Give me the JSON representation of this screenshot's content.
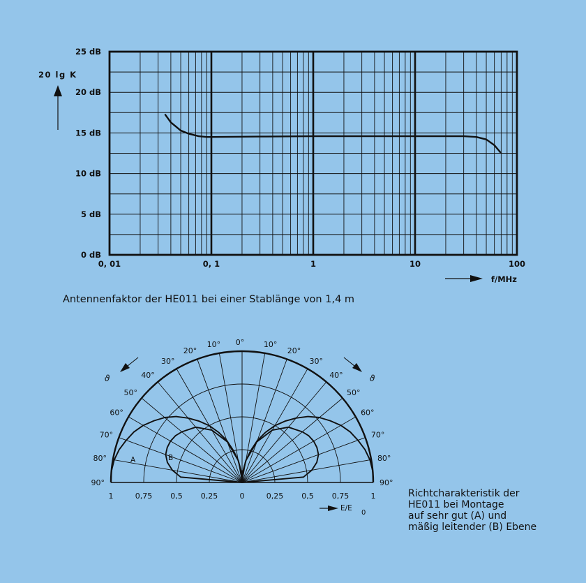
{
  "colors": {
    "background": "#94c5ea",
    "line": "#111111"
  },
  "chart_data": [
    {
      "type": "line",
      "x_scale": "log",
      "xlim": [
        0.01,
        100
      ],
      "ylim": [
        0,
        25
      ],
      "x_ticks": [
        0.01,
        0.1,
        1,
        10,
        100
      ],
      "x_tick_labels": [
        "0, 01",
        "0, 1",
        "1",
        "10",
        "100"
      ],
      "y_ticks": [
        0,
        5,
        10,
        15,
        20,
        25
      ],
      "y_tick_labels": [
        "0 dB",
        "5 dB",
        "10 dB",
        "15 dB",
        "20 dB",
        "25 dB"
      ],
      "ylabel": "20 lg K",
      "xlabel": "f/MHz",
      "grid": true,
      "series": [
        {
          "x": [
            0.035,
            0.04,
            0.05,
            0.06,
            0.075,
            0.09,
            0.1,
            0.3,
            1,
            3,
            10,
            30,
            40,
            50,
            60,
            70
          ],
          "y": [
            17.3,
            16.3,
            15.3,
            14.9,
            14.6,
            14.5,
            14.5,
            14.55,
            14.6,
            14.6,
            14.6,
            14.6,
            14.5,
            14.2,
            13.5,
            12.5
          ]
        }
      ]
    },
    {
      "type": "polar",
      "angle_labels_left": [
        "0°",
        "10°",
        "20°",
        "30°",
        "40°",
        "50°",
        "60°",
        "70°",
        "80°",
        "90°"
      ],
      "angle_labels_right": [
        "0°",
        "10°",
        "20°",
        "30°",
        "40°",
        "50°",
        "60°",
        "70°",
        "80°",
        "90°"
      ],
      "radial_labels": [
        "1",
        "0,75",
        "0,5",
        "0,25",
        "0",
        "0,25",
        "0,5",
        "0,75",
        "1"
      ],
      "radial_label_end": "0",
      "axis_label": "E/E",
      "theta_symbol": "ϑ",
      "series": [
        {
          "name": "A",
          "theta_deg": [
            0,
            5,
            10,
            15,
            20,
            25,
            30,
            35,
            40,
            45,
            50,
            55,
            60,
            65,
            70,
            75,
            80,
            85,
            90
          ],
          "r": [
            0,
            0.08,
            0.17,
            0.25,
            0.34,
            0.42,
            0.5,
            0.57,
            0.64,
            0.71,
            0.77,
            0.82,
            0.87,
            0.91,
            0.94,
            0.97,
            0.99,
            1.0,
            1.0
          ]
        },
        {
          "name": "B",
          "theta_deg": [
            0,
            5,
            10,
            20,
            30,
            40,
            50,
            55,
            60,
            65,
            70,
            75,
            80,
            85,
            90
          ],
          "r": [
            0,
            0.087,
            0.17,
            0.33,
            0.46,
            0.55,
            0.6,
            0.62,
            0.63,
            0.63,
            0.62,
            0.59,
            0.54,
            0.47,
            0
          ]
        }
      ]
    }
  ],
  "captions": {
    "chart1": "Antennenfaktor der HE011 bei einer Stablänge von 1,4 m",
    "chart2": [
      "Richtcharakteristik der",
      "HE011 bei Montage",
      "auf sehr gut (A) und",
      "mäßig leitender (B) Ebene"
    ]
  }
}
